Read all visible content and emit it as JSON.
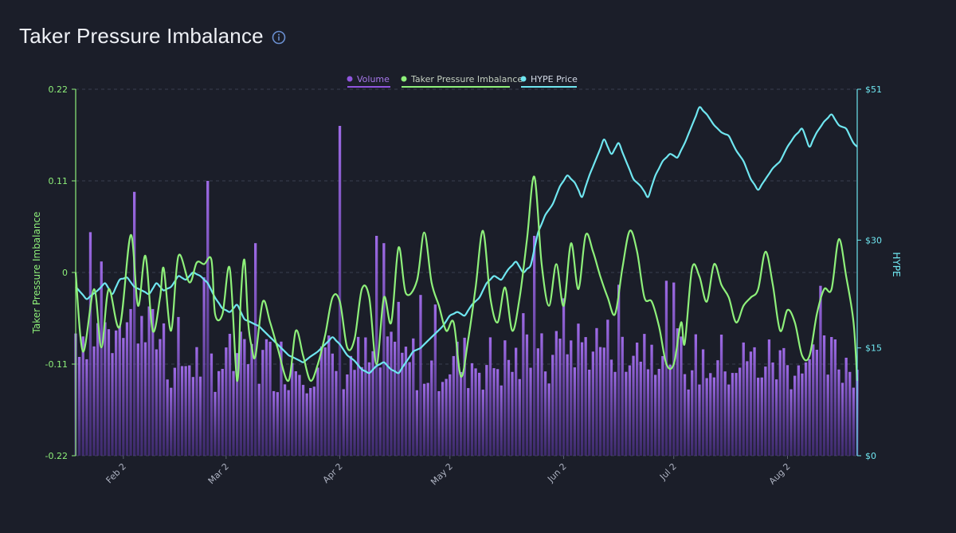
{
  "header": {
    "title": "Taker Pressure Imbalance",
    "info_icon": "info-circle-icon"
  },
  "colors": {
    "background": "#1b1e29",
    "volume": "#8f55dd",
    "volume_fill_top": "#9b63e8",
    "volume_fill_bottom": "#5b36a3",
    "imbalance": "#8ef07a",
    "price": "#6fe6f0",
    "grid": "#3a3f4e",
    "axis_text": "#aeb3c2",
    "left_axis_text": "#8ef07a",
    "right_axis_text": "#6fe6f0"
  },
  "chart_data": {
    "type": "bar+line",
    "legend": [
      {
        "key": "volume",
        "label": "Volume"
      },
      {
        "key": "imbalance",
        "label": "Taker Pressure Imbalance"
      },
      {
        "key": "price",
        "label": "HYPE Price"
      }
    ],
    "y_left": {
      "label": "Taker Pressure Imbalance",
      "ticks": [
        "0.22",
        "0.11",
        "0",
        "-0.11",
        "-0.22"
      ],
      "range": [
        -0.22,
        0.22
      ]
    },
    "y_right": {
      "label": "HYPE",
      "ticks": [
        "$51",
        "$30",
        "$15",
        "$0"
      ],
      "range": [
        0,
        51
      ]
    },
    "x_ticks": [
      "Feb 2",
      "Mar 2",
      "Apr 2",
      "May 2",
      "Jun 2",
      "Jul 2",
      "Aug 2"
    ],
    "x_tick_day_index": [
      13,
      41,
      72,
      102,
      133,
      163,
      194
    ],
    "x_range_days": [
      0,
      213
    ],
    "grid": "horizontal-dashed",
    "legend_placement": "top-center",
    "imbalance_knots": [
      [
        0,
        0
      ],
      [
        2,
        -0.095
      ],
      [
        5,
        -0.02
      ],
      [
        7,
        -0.09
      ],
      [
        9,
        -0.02
      ],
      [
        12,
        -0.065
      ],
      [
        15,
        0.045
      ],
      [
        17,
        -0.04
      ],
      [
        19,
        0.02
      ],
      [
        21,
        -0.07
      ],
      [
        23,
        -0.03
      ],
      [
        24,
        0.005
      ],
      [
        26,
        -0.07
      ],
      [
        28,
        0.02
      ],
      [
        31,
        -0.012
      ],
      [
        33,
        0.012
      ],
      [
        35,
        0.01
      ],
      [
        37,
        0.015
      ],
      [
        38,
        -0.05
      ],
      [
        40,
        -0.05
      ],
      [
        42,
        0.005
      ],
      [
        44,
        -0.13
      ],
      [
        45,
        -0.03
      ],
      [
        46,
        0.015
      ],
      [
        47,
        -0.06
      ],
      [
        48,
        -0.09
      ],
      [
        49,
        -0.1
      ],
      [
        51,
        -0.035
      ],
      [
        53,
        -0.06
      ],
      [
        55,
        -0.09
      ],
      [
        58,
        -0.13
      ],
      [
        60,
        -0.07
      ],
      [
        62,
        -0.1
      ],
      [
        64,
        -0.13
      ],
      [
        66,
        -0.11
      ],
      [
        68,
        -0.075
      ],
      [
        70,
        -0.03
      ],
      [
        72,
        -0.035
      ],
      [
        74,
        -0.09
      ],
      [
        76,
        -0.08
      ],
      [
        78,
        -0.02
      ],
      [
        80,
        -0.03
      ],
      [
        82,
        -0.11
      ],
      [
        84,
        -0.03
      ],
      [
        86,
        -0.06
      ],
      [
        88,
        0.03
      ],
      [
        90,
        -0.025
      ],
      [
        93,
        -0.01
      ],
      [
        95,
        0.048
      ],
      [
        97,
        -0.012
      ],
      [
        99,
        -0.04
      ],
      [
        101,
        -0.07
      ],
      [
        103,
        -0.06
      ],
      [
        105,
        -0.125
      ],
      [
        107,
        -0.08
      ],
      [
        109,
        -0.018
      ],
      [
        111,
        0.05
      ],
      [
        113,
        -0.03
      ],
      [
        115,
        -0.06
      ],
      [
        117,
        -0.018
      ],
      [
        119,
        -0.07
      ],
      [
        121,
        -0.03
      ],
      [
        123,
        0.04
      ],
      [
        125,
        0.115
      ],
      [
        127,
        0.01
      ],
      [
        129,
        -0.04
      ],
      [
        131,
        0.01
      ],
      [
        133,
        -0.04
      ],
      [
        135,
        0.035
      ],
      [
        137,
        -0.02
      ],
      [
        139,
        0.045
      ],
      [
        141,
        0.025
      ],
      [
        143,
        -0.005
      ],
      [
        145,
        -0.03
      ],
      [
        147,
        -0.05
      ],
      [
        149,
        0.005
      ],
      [
        151,
        0.05
      ],
      [
        153,
        0.025
      ],
      [
        155,
        -0.03
      ],
      [
        157,
        -0.035
      ],
      [
        159,
        -0.065
      ],
      [
        161,
        -0.11
      ],
      [
        163,
        -0.11
      ],
      [
        165,
        -0.06
      ],
      [
        166,
        -0.085
      ],
      [
        168,
        0.005
      ],
      [
        170,
        -0.005
      ],
      [
        172,
        -0.035
      ],
      [
        174,
        0.01
      ],
      [
        176,
        -0.015
      ],
      [
        178,
        -0.03
      ],
      [
        180,
        -0.06
      ],
      [
        182,
        -0.04
      ],
      [
        184,
        -0.03
      ],
      [
        186,
        -0.02
      ],
      [
        188,
        0.025
      ],
      [
        190,
        -0.015
      ],
      [
        192,
        -0.07
      ],
      [
        194,
        -0.045
      ],
      [
        196,
        -0.06
      ],
      [
        198,
        -0.1
      ],
      [
        200,
        -0.1
      ],
      [
        202,
        -0.05
      ],
      [
        204,
        -0.02
      ],
      [
        206,
        -0.02
      ],
      [
        208,
        0.04
      ],
      [
        210,
        -0.005
      ],
      [
        212,
        -0.06
      ],
      [
        213,
        -0.13
      ]
    ],
    "price_knots": [
      [
        0,
        23.5
      ],
      [
        3,
        21.8
      ],
      [
        6,
        23.0
      ],
      [
        8,
        24.0
      ],
      [
        10,
        22.5
      ],
      [
        12,
        24.5
      ],
      [
        14,
        24.8
      ],
      [
        16,
        23.5
      ],
      [
        18,
        23.0
      ],
      [
        20,
        22.5
      ],
      [
        22,
        24.0
      ],
      [
        24,
        23.0
      ],
      [
        26,
        23.5
      ],
      [
        28,
        25.0
      ],
      [
        30,
        24.5
      ],
      [
        32,
        25.5
      ],
      [
        34,
        25.0
      ],
      [
        36,
        24.0
      ],
      [
        38,
        22.0
      ],
      [
        40,
        20.5
      ],
      [
        42,
        20.0
      ],
      [
        44,
        21.0
      ],
      [
        46,
        19.0
      ],
      [
        48,
        18.5
      ],
      [
        50,
        18.0
      ],
      [
        52,
        17.0
      ],
      [
        54,
        16.0
      ],
      [
        56,
        15.0
      ],
      [
        58,
        14.0
      ],
      [
        60,
        13.5
      ],
      [
        62,
        13.0
      ],
      [
        64,
        13.8
      ],
      [
        66,
        14.5
      ],
      [
        68,
        15.5
      ],
      [
        70,
        16.5
      ],
      [
        72,
        15.5
      ],
      [
        74,
        14.0
      ],
      [
        76,
        13.2
      ],
      [
        78,
        12.0
      ],
      [
        80,
        11.5
      ],
      [
        82,
        12.5
      ],
      [
        84,
        13.0
      ],
      [
        86,
        12.0
      ],
      [
        88,
        11.5
      ],
      [
        90,
        13.0
      ],
      [
        92,
        14.5
      ],
      [
        94,
        15.0
      ],
      [
        96,
        16.0
      ],
      [
        98,
        17.0
      ],
      [
        100,
        18.0
      ],
      [
        102,
        19.5
      ],
      [
        104,
        20.0
      ],
      [
        106,
        19.5
      ],
      [
        108,
        21.0
      ],
      [
        110,
        22.0
      ],
      [
        112,
        24.0
      ],
      [
        114,
        25.0
      ],
      [
        116,
        24.5
      ],
      [
        118,
        26.0
      ],
      [
        120,
        27.0
      ],
      [
        122,
        25.5
      ],
      [
        124,
        26.5
      ],
      [
        126,
        31.0
      ],
      [
        128,
        33.5
      ],
      [
        130,
        35.0
      ],
      [
        132,
        37.5
      ],
      [
        134,
        39.0
      ],
      [
        136,
        38.0
      ],
      [
        138,
        36.0
      ],
      [
        140,
        39.0
      ],
      [
        142,
        41.5
      ],
      [
        144,
        44.0
      ],
      [
        146,
        42.0
      ],
      [
        148,
        43.5
      ],
      [
        150,
        41.0
      ],
      [
        152,
        38.5
      ],
      [
        154,
        37.5
      ],
      [
        156,
        36.0
      ],
      [
        158,
        39.0
      ],
      [
        160,
        41.0
      ],
      [
        162,
        42.0
      ],
      [
        164,
        41.5
      ],
      [
        166,
        43.5
      ],
      [
        168,
        46.0
      ],
      [
        170,
        48.5
      ],
      [
        172,
        47.5
      ],
      [
        174,
        46.0
      ],
      [
        176,
        45.0
      ],
      [
        178,
        44.5
      ],
      [
        180,
        42.5
      ],
      [
        182,
        41.0
      ],
      [
        184,
        38.5
      ],
      [
        186,
        37.0
      ],
      [
        188,
        38.5
      ],
      [
        190,
        40.0
      ],
      [
        192,
        41.0
      ],
      [
        194,
        43.0
      ],
      [
        196,
        44.5
      ],
      [
        198,
        45.5
      ],
      [
        200,
        43.0
      ],
      [
        202,
        45.0
      ],
      [
        204,
        46.5
      ],
      [
        206,
        47.5
      ],
      [
        208,
        46.0
      ],
      [
        210,
        45.5
      ],
      [
        212,
        43.5
      ],
      [
        213,
        43.0
      ]
    ]
  }
}
